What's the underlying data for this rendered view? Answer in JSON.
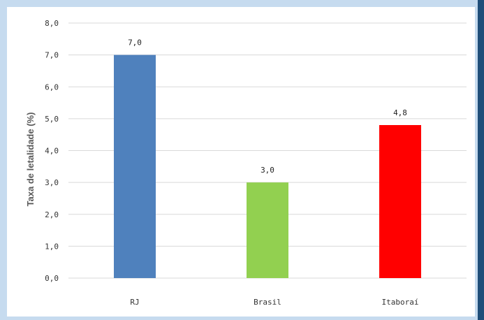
{
  "chart_data": {
    "type": "bar",
    "title": "",
    "xlabel": "",
    "ylabel": "Taxa de letalidade (%)",
    "categories": [
      "RJ",
      "Brasil",
      "Itaboraí"
    ],
    "values": [
      7.0,
      3.0,
      4.8
    ],
    "value_labels": [
      "7,0",
      "3,0",
      "4,8"
    ],
    "bar_colors": [
      "#4f81bd",
      "#92d050",
      "#ff0000"
    ],
    "ylim": [
      0,
      8
    ],
    "yticks": [
      0,
      1,
      2,
      3,
      4,
      5,
      6,
      7,
      8
    ],
    "ytick_labels": [
      "0,0",
      "1,0",
      "2,0",
      "3,0",
      "4,0",
      "5,0",
      "6,0",
      "7,0",
      "8,0"
    ],
    "grid": true,
    "legend": "none"
  },
  "colors": {
    "background": "#c6dbef",
    "panel": "#ffffff",
    "gridline": "#d9d9d9",
    "frame_edge": "#1f4e79"
  }
}
